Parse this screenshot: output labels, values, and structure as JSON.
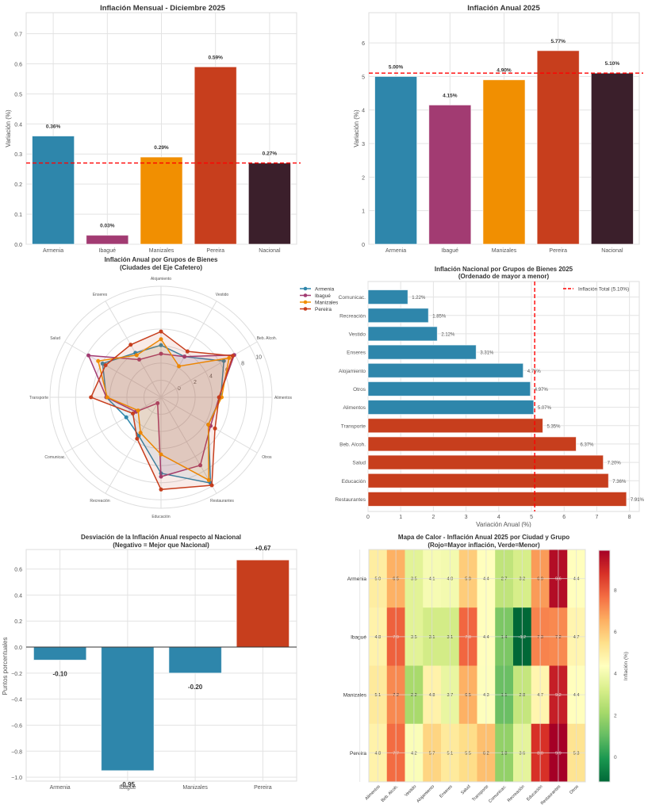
{
  "chart_data": [
    {
      "id": "monthly",
      "type": "bar",
      "title": "Inflación Mensual - Diciembre 2025",
      "xlabel": "",
      "ylabel": "Variación (%)",
      "categories": [
        "Armenia",
        "Ibagué",
        "Manizales",
        "Pereira",
        "Nacional"
      ],
      "values": [
        0.36,
        0.03,
        0.29,
        0.59,
        0.27
      ],
      "value_labels": [
        "0.36%",
        "0.03%",
        "0.29%",
        "0.59%",
        "0.27%"
      ],
      "colors": [
        "#2E86AB",
        "#A23B72",
        "#F18F01",
        "#C73E1D",
        "#3B1F2B"
      ],
      "reference_line": 0.27,
      "ylim": [
        0,
        0.77
      ],
      "yticks": [
        0.0,
        0.1,
        0.2,
        0.3,
        0.4,
        0.5,
        0.6,
        0.7
      ],
      "ytick_labels": [
        "0.0",
        "0.1",
        "0.2",
        "0.3",
        "0.4",
        "0.5",
        "0.6",
        "0.7"
      ],
      "grid": true
    },
    {
      "id": "annual",
      "type": "bar",
      "title": "Inflación Anual 2025",
      "xlabel": "",
      "ylabel": "Variación (%)",
      "categories": [
        "Armenia",
        "Ibagué",
        "Manizales",
        "Pereira",
        "Nacional"
      ],
      "values": [
        5.0,
        4.15,
        4.9,
        5.77,
        5.1
      ],
      "value_labels": [
        "5.00%",
        "4.15%",
        "4.90%",
        "5.77%",
        "5.10%"
      ],
      "colors": [
        "#2E86AB",
        "#A23B72",
        "#F18F01",
        "#C73E1D",
        "#3B1F2B"
      ],
      "reference_line": 5.1,
      "ylim": [
        0,
        6.9
      ],
      "yticks": [
        0,
        1,
        2,
        3,
        4,
        5,
        6
      ],
      "ytick_labels": [
        "0",
        "1",
        "2",
        "3",
        "4",
        "5",
        "6"
      ],
      "grid": true
    },
    {
      "id": "radar",
      "type": "radar",
      "title": "Inflación Anual por Grupos de Bienes",
      "subtitle": "(Ciudades del Eje Cafetero)",
      "axes": [
        "Alimentos",
        "Beb. Alcoh.",
        "Vestido",
        "Alojamiento",
        "Enseres",
        "Salud",
        "Transporte",
        "Comunicac.",
        "Recreación",
        "Educación",
        "Restaurantes",
        "Otros"
      ],
      "rlim": [
        -2,
        11
      ],
      "rticks": [
        0,
        2,
        4,
        6,
        8,
        10
      ],
      "rtick_labels": [
        "0",
        "2",
        "4",
        "6",
        "8",
        "10"
      ],
      "series": [
        {
          "name": "Armenia",
          "color": "#2E86AB",
          "values": [
            5.0,
            6.5,
            3.5,
            4.1,
            4.0,
            5.9,
            4.4,
            2.7,
            3.2,
            6.9,
            9.6,
            4.4
          ]
        },
        {
          "name": "Ibagué",
          "color": "#A23B72",
          "values": [
            4.8,
            7.9,
            3.5,
            3.1,
            3.1,
            7.8,
            4.4,
            1.4,
            -1.2,
            7.3,
            7.2,
            4.7
          ]
        },
        {
          "name": "Manizales",
          "color": "#F18F01",
          "values": [
            5.1,
            7.2,
            2.2,
            4.8,
            3.7,
            6.5,
            4.3,
            1.1,
            2.8,
            4.7,
            9.2,
            4.4
          ]
        },
        {
          "name": "Pereira",
          "color": "#C73E1D",
          "values": [
            4.8,
            7.7,
            4.2,
            5.7,
            5.1,
            5.5,
            6.2,
            1.8,
            3.6,
            8.8,
            9.9,
            5.3
          ]
        }
      ],
      "legend": "top-right"
    },
    {
      "id": "national_groups",
      "type": "barh",
      "title": "Inflación Nacional por Grupos de Bienes 2025",
      "subtitle": "(Ordenado de mayor a menor)",
      "xlabel": "Variación Anual (%)",
      "ylabel": "",
      "categories": [
        "Comunicac.",
        "Recreación",
        "Vestido",
        "Enseres",
        "Alojamiento",
        "Otros",
        "Alimentos",
        "Transporte",
        "Beb. Alcoh.",
        "Salud",
        "Educación",
        "Restaurantes"
      ],
      "values": [
        1.22,
        1.85,
        2.12,
        3.31,
        4.75,
        4.97,
        5.07,
        5.35,
        6.37,
        7.2,
        7.36,
        7.91
      ],
      "value_labels": [
        "1.22%",
        "1.85%",
        "2.12%",
        "3.31%",
        "4.75%",
        "4.97%",
        "5.07%",
        "5.35%",
        "6.37%",
        "7.20%",
        "7.36%",
        "7.91%"
      ],
      "below_color": "#2E86AB",
      "above_color": "#C73E1D",
      "reference_line": 5.1,
      "legend_label": "Inflación Total (5.10%)",
      "legend": "top-right",
      "xlim": [
        0,
        8.3
      ],
      "xticks": [
        0,
        1,
        2,
        3,
        4,
        5,
        6,
        7,
        8
      ],
      "xtick_labels": [
        "0",
        "1",
        "2",
        "3",
        "4",
        "5",
        "6",
        "7",
        "8"
      ],
      "grid": true
    },
    {
      "id": "deviation",
      "type": "bar",
      "title": "Desviación de la Inflación Anual respecto al Nacional",
      "subtitle": "(Negativo = Mejor que Nacional)",
      "xlabel": "",
      "ylabel": "Puntos porcentuales",
      "categories": [
        "Armenia",
        "Ibagué",
        "Manizales",
        "Pereira"
      ],
      "values": [
        -0.1,
        -0.95,
        -0.2,
        0.67
      ],
      "value_labels": [
        "-0.10",
        "-0.95",
        "-0.20",
        "+0.67"
      ],
      "negative_color": "#2E86AB",
      "positive_color": "#C73E1D",
      "ylim": [
        -1.03,
        0.75
      ],
      "yticks": [
        -1.0,
        -0.8,
        -0.6,
        -0.4,
        -0.2,
        0.0,
        0.2,
        0.4,
        0.6
      ],
      "ytick_labels": [
        "−1.0",
        "−0.8",
        "−0.6",
        "−0.4",
        "−0.2",
        "0.0",
        "0.2",
        "0.4",
        "0.6"
      ],
      "grid": true
    },
    {
      "id": "heatmap",
      "type": "heatmap",
      "title": "Mapa de Calor - Inflación Anual 2025 por Ciudad y Grupo",
      "subtitle": "(Rojo=Mayor inflación, Verde=Menor)",
      "rows": [
        "Armenia",
        "Ibagué",
        "Manizales",
        "Pereira"
      ],
      "columns": [
        "Alimentos",
        "Beb. Alcoh.",
        "Vestido",
        "Alojamiento",
        "Enseres",
        "Salud",
        "Transporte",
        "Comunicac.",
        "Recreación",
        "Educación",
        "Restaurantes",
        "Otros"
      ],
      "values": [
        [
          5.0,
          6.5,
          3.5,
          4.1,
          4.0,
          5.9,
          4.4,
          2.7,
          3.2,
          6.9,
          9.6,
          4.4
        ],
        [
          4.8,
          7.9,
          3.5,
          3.1,
          3.1,
          7.8,
          4.4,
          1.4,
          -1.2,
          7.3,
          7.2,
          4.7
        ],
        [
          5.1,
          7.2,
          2.2,
          4.8,
          3.7,
          6.5,
          4.3,
          1.1,
          2.8,
          4.7,
          9.2,
          4.4
        ],
        [
          4.8,
          7.7,
          4.2,
          5.7,
          5.1,
          5.5,
          6.2,
          1.8,
          3.6,
          8.8,
          9.9,
          5.3
        ]
      ],
      "colormap": "RdYlGn_r",
      "vmin": -1.2,
      "vmax": 9.9,
      "colorbar_label": "Inflación (%)",
      "colorbar_ticks": [
        0,
        2,
        4,
        6,
        8
      ],
      "colorbar_tick_labels": [
        "0",
        "2",
        "4",
        "6",
        "8"
      ]
    }
  ]
}
